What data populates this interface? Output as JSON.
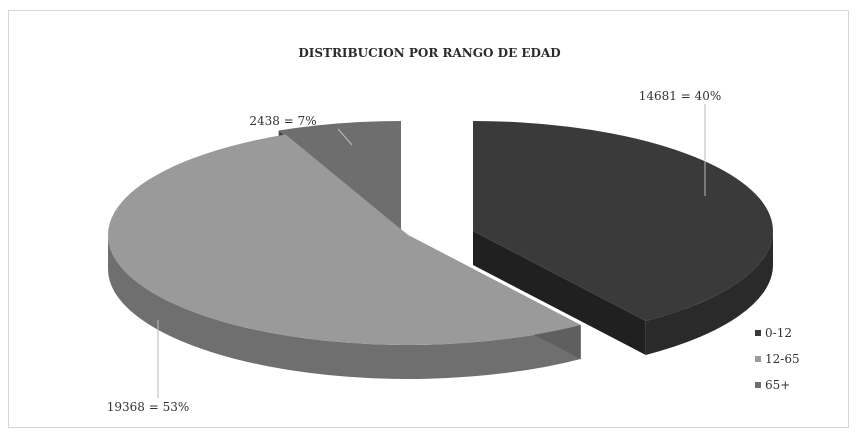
{
  "chart_data": {
    "type": "pie",
    "title": "DISTRIBUCION POR RANGO DE EDAD",
    "categories": [
      "0-12",
      "12-65",
      "65+"
    ],
    "values": [
      14681,
      19368,
      2438
    ],
    "percentages": [
      40,
      53,
      7
    ],
    "data_labels": [
      "14681 = 40%",
      "19368 = 53%",
      "2438 = 7%"
    ],
    "colors": [
      "#3a3a3a",
      "#9a9a9a",
      "#6e6e6e"
    ],
    "legend": {
      "position": "bottom-right",
      "entries": [
        "0-12",
        "12-65",
        "65+"
      ]
    },
    "style": "3d-exploded"
  }
}
